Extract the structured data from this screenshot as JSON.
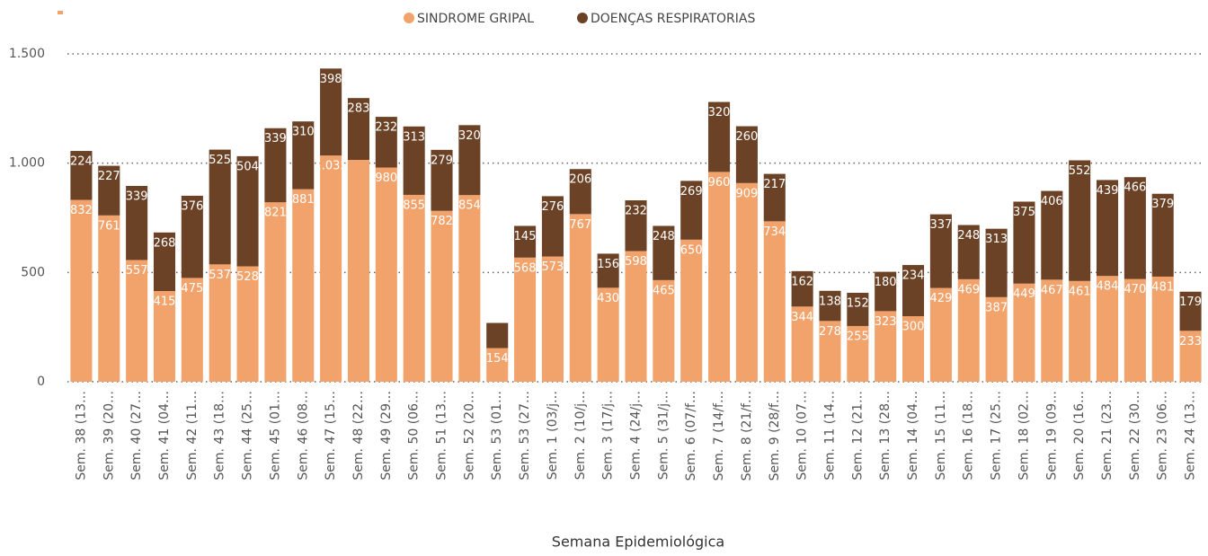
{
  "chart_data": {
    "type": "stacked_bar",
    "x_label": "Semana Epidemiológica",
    "categories": [
      "Sem. 38 (13…",
      "Sem. 39 (20…",
      "Sem. 40 (27…",
      "Sem. 41 (04…",
      "Sem. 42 (11…",
      "Sem. 43 (18…",
      "Sem. 44 (25…",
      "Sem. 45 (01…",
      "Sem. 46 (08…",
      "Sem. 47 (15…",
      "Sem. 48 (22…",
      "Sem. 49 (29…",
      "Sem. 50 (06…",
      "Sem. 51 (13…",
      "Sem. 52 (20…",
      "Sem. 53 (01…",
      "Sem. 53 (27…",
      "Sem. 1 (03/j…",
      "Sem. 2 (10/j…",
      "Sem. 3 (17/j…",
      "Sem. 4 (24/j…",
      "Sem. 5 (31/j…",
      "Sem. 6 (07/f…",
      "Sem. 7 (14/f…",
      "Sem. 8 (21/f…",
      "Sem. 9 (28/f…",
      "Sem. 10 (07…",
      "Sem. 11 (14…",
      "Sem. 12 (21…",
      "Sem. 13 (28…",
      "Sem. 14 (04…",
      "Sem. 15 (11…",
      "Sem. 16 (18…",
      "Sem. 17 (25…",
      "Sem. 18 (02…",
      "Sem. 19 (09…",
      "Sem. 20 (16…",
      "Sem. 21 (23…",
      "Sem. 22 (30…",
      "Sem. 23 (06…",
      "Sem. 24 (13…"
    ],
    "series": [
      {
        "name": "SINDROME GRIPAL",
        "color": "#f2a36c",
        "values": [
          832,
          761,
          557,
          415,
          475,
          537,
          528,
          821,
          881,
          1035,
          1015,
          980,
          855,
          782,
          854,
          154,
          568,
          573,
          767,
          430,
          598,
          465,
          650,
          960,
          909,
          734,
          344,
          278,
          255,
          323,
          300,
          429,
          469,
          387,
          449,
          467,
          461,
          484,
          470,
          481,
          233
        ],
        "value_labels": [
          "832",
          "761",
          "557",
          "415",
          "475",
          "537",
          "528",
          "821",
          "881",
          "1.035",
          null,
          "980",
          "855",
          "782",
          "854",
          "154",
          "568",
          "573",
          "767",
          "430",
          "598",
          "465",
          "650",
          "960",
          "909",
          "734",
          "344",
          "278",
          "255",
          "323",
          "300",
          "429",
          "469",
          "387",
          "449",
          "467",
          "461",
          "484",
          "470",
          "481",
          "233"
        ]
      },
      {
        "name": "DOENÇAS RESPIRATORIAS",
        "color": "#6b4226",
        "values": [
          224,
          227,
          339,
          268,
          376,
          525,
          504,
          339,
          310,
          398,
          283,
          232,
          313,
          279,
          320,
          115,
          145,
          276,
          206,
          156,
          232,
          248,
          269,
          320,
          260,
          217,
          162,
          138,
          152,
          180,
          234,
          337,
          248,
          313,
          375,
          406,
          552,
          439,
          466,
          379,
          179
        ],
        "value_labels": [
          "224",
          "227",
          "339",
          "268",
          "376",
          "525",
          "504",
          "339",
          "310",
          "398",
          "283",
          "232",
          "313",
          "279",
          "320",
          null,
          "145",
          "276",
          "206",
          "156",
          "232",
          "248",
          "269",
          "320",
          "260",
          "217",
          "162",
          "138",
          "152",
          "180",
          "234",
          "337",
          "248",
          "313",
          "375",
          "406",
          "552",
          "439",
          "466",
          "379",
          "179"
        ]
      }
    ],
    "ylim": [
      0,
      1500
    ],
    "yticks": [
      0,
      {
        "value": 500,
        "label": "500"
      },
      {
        "value": 1000,
        "label": "1.000"
      },
      {
        "value": 1500,
        "label": "1.500"
      }
    ],
    "grid": true,
    "legend": "top"
  }
}
